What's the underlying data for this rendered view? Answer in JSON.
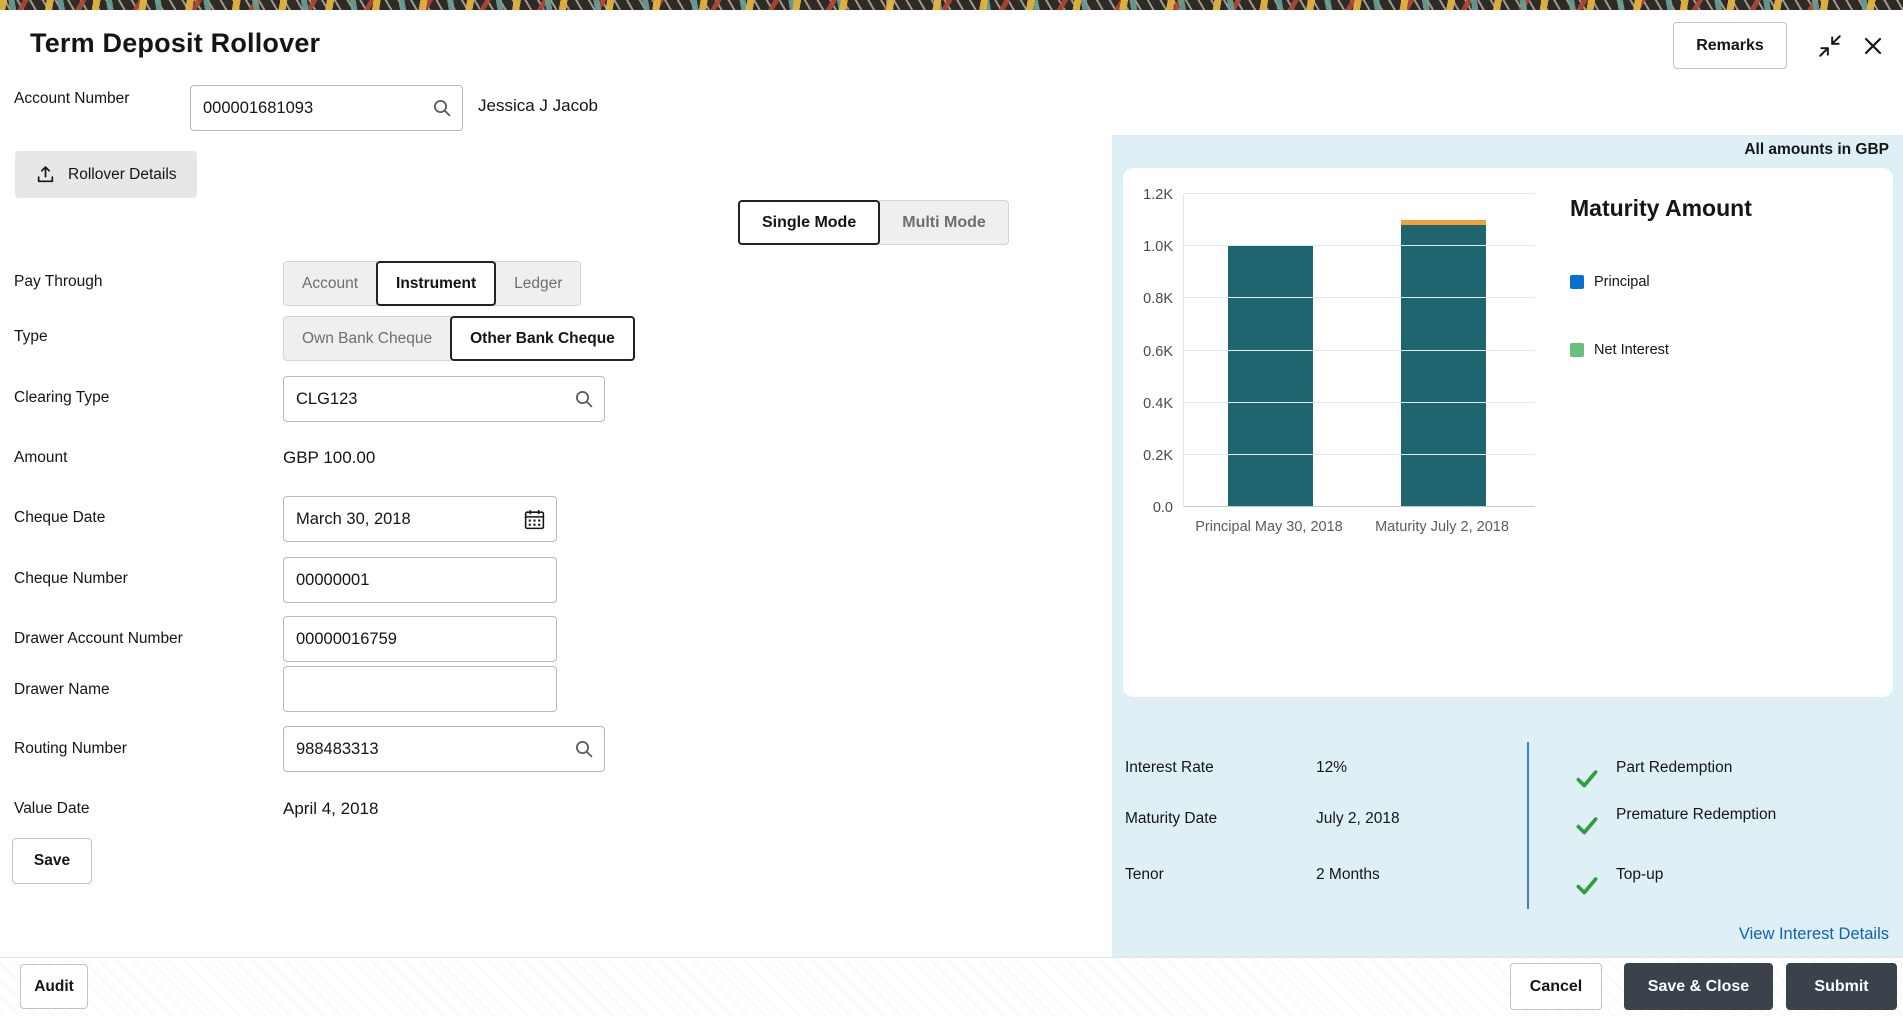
{
  "header": {
    "title": "Term Deposit Rollover",
    "remarks_label": "Remarks"
  },
  "account": {
    "label": "Account Number",
    "number": "000001681093",
    "holder": "Jessica J Jacob"
  },
  "rollover": {
    "section_label": "Rollover Details",
    "mode": {
      "options": [
        "Single Mode",
        "Multi Mode"
      ],
      "selected": "Single Mode"
    },
    "pay_through": {
      "label": "Pay Through",
      "options": [
        "Account",
        "Instrument",
        "Ledger"
      ],
      "selected": "Instrument"
    },
    "cheque_type": {
      "label": "Type",
      "options": [
        "Own Bank Cheque",
        "Other Bank Cheque"
      ],
      "selected": "Other Bank Cheque"
    },
    "clearing_type": {
      "label": "Clearing Type",
      "value": "CLG123"
    },
    "amount": {
      "label": "Amount",
      "value": "GBP 100.00"
    },
    "cheque_date": {
      "label": "Cheque Date",
      "value": "March 30, 2018"
    },
    "cheque_number": {
      "label": "Cheque Number",
      "value": "00000001"
    },
    "drawer_account_number": {
      "label": "Drawer Account Number",
      "value": "00000016759"
    },
    "drawer_name": {
      "label": "Drawer Name",
      "value": ""
    },
    "routing_number": {
      "label": "Routing Number",
      "value": "988483313"
    },
    "value_date": {
      "label": "Value Date",
      "value": "April 4, 2018"
    },
    "save_label": "Save"
  },
  "summary": {
    "note": "All amounts in GBP",
    "details": [
      {
        "label": "Interest Rate",
        "value": "12%"
      },
      {
        "label": "Maturity Date",
        "value": "July 2, 2018"
      },
      {
        "label": "Tenor",
        "value": "2 Months"
      }
    ],
    "features": [
      "Part Redemption",
      "Premature Redemption",
      "Top-up"
    ],
    "link_label": "View Interest Details"
  },
  "footer": {
    "audit_label": "Audit",
    "cancel_label": "Cancel",
    "save_close_label": "Save & Close",
    "submit_label": "Submit"
  },
  "colors": {
    "panel_bg": "#def0f6",
    "dark_button": "#3a424b",
    "link": "#0f62b5",
    "check_green": "#2f9e41",
    "divider_blue": "#3e7ec6"
  },
  "chart_data": {
    "type": "bar",
    "stacked": true,
    "title": "Maturity Amount",
    "categories": [
      "Principal May 30, 2018",
      "Maturity July 2, 2018"
    ],
    "series": [
      {
        "name": "Principal",
        "legend_color": "#0572ce",
        "values": [
          1000,
          1080
        ]
      },
      {
        "name": "Net Interest",
        "legend_color": "#68c07c",
        "values": [
          0,
          20
        ]
      }
    ],
    "yticks": [
      "0.0",
      "0.2K",
      "0.4K",
      "0.6K",
      "0.8K",
      "1.0K",
      "1.2K"
    ],
    "ylim": [
      0,
      1200
    ],
    "bar_colors": {
      "principal": "#1f6570",
      "net_interest": "#f0a336"
    },
    "legend_position": "right",
    "grid": true
  }
}
